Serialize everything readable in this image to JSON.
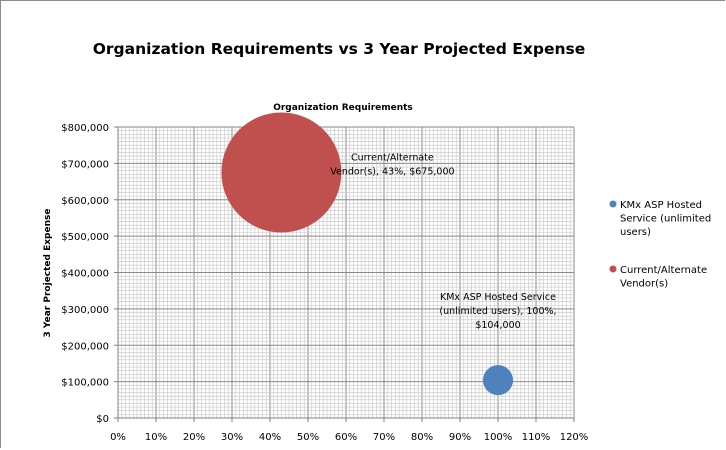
{
  "chart_data": {
    "type": "scatter",
    "variant": "bubble",
    "title": "Organization Requirements vs 3 Year Projected Expense",
    "xlabel": "Organization Requirements",
    "ylabel": "3 Year Projected Expense",
    "xlim": [
      0,
      1.2
    ],
    "ylim": [
      0,
      800000
    ],
    "x_tick_labels": [
      "0%",
      "10%",
      "20%",
      "30%",
      "40%",
      "50%",
      "60%",
      "70%",
      "80%",
      "90%",
      "100%",
      "110%",
      "120%"
    ],
    "y_tick_labels": [
      "$0",
      "$100,000",
      "$200,000",
      "$300,000",
      "$400,000",
      "$500,000",
      "$600,000",
      "$700,000",
      "$800,000"
    ],
    "grid": true,
    "legend_position": "right",
    "series": [
      {
        "name": "KMx ASP Hosted Service  (unlimited users)",
        "color": "#4f81bd",
        "x": 1.0,
        "y": 104000,
        "bubble_size": 1,
        "label": [
          "KMx ASP Hosted Service",
          "(unlimited users), 100%,",
          "$104,000"
        ]
      },
      {
        "name": "Current/Alternate Vendor(s)",
        "color": "#c0504d",
        "x": 0.43,
        "y": 675000,
        "bubble_size": 16,
        "label": [
          "Current/Alternate",
          "Vendor(s), 43%, $675,000"
        ]
      }
    ],
    "legend": [
      {
        "lines": [
          "KMx ASP Hosted",
          "Service  (unlimited",
          "users)"
        ],
        "color": "#4f81bd",
        "icon": "circle-marker"
      },
      {
        "lines": [
          "Current/Alternate",
          "Vendor(s)"
        ],
        "color": "#c0504d",
        "icon": "circle-marker"
      }
    ]
  }
}
